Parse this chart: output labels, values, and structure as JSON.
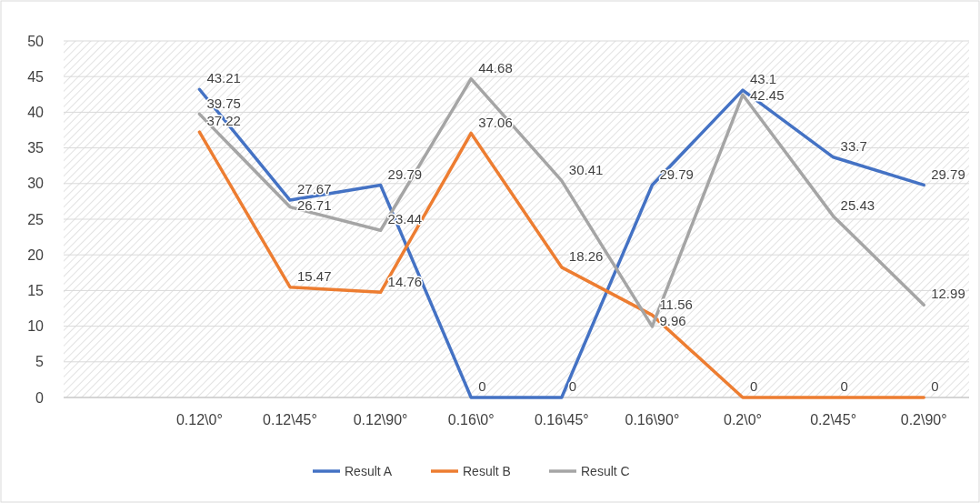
{
  "chart_data": {
    "type": "line",
    "categories": [
      null,
      "0.12\\0°",
      "0.12\\45°",
      "0.12\\90°",
      "0.16\\0°",
      "0.16\\45°",
      "0.16\\90°",
      "0.2\\0°",
      "0.2\\45°",
      "0.2\\90°"
    ],
    "series": [
      {
        "name": "Result A",
        "color": "#4472c4",
        "values": [
          null,
          43.21,
          27.67,
          29.79,
          0,
          0,
          29.79,
          43.1,
          33.7,
          29.79
        ]
      },
      {
        "name": "Result B",
        "color": "#ed7d31",
        "values": [
          null,
          37.22,
          15.47,
          14.76,
          37.06,
          18.26,
          11.56,
          0,
          0,
          0
        ]
      },
      {
        "name": "Result C",
        "color": "#a5a5a5",
        "values": [
          null,
          39.75,
          26.71,
          23.44,
          44.68,
          30.41,
          9.96,
          42.45,
          25.43,
          12.99
        ]
      }
    ],
    "ylim": [
      0,
      50
    ],
    "yticks": [
      0,
      5,
      10,
      15,
      20,
      25,
      30,
      35,
      40,
      45,
      50
    ],
    "grid": "y",
    "legend": "bottom",
    "data_labels": true,
    "marker": "none",
    "line_style": "solid"
  }
}
